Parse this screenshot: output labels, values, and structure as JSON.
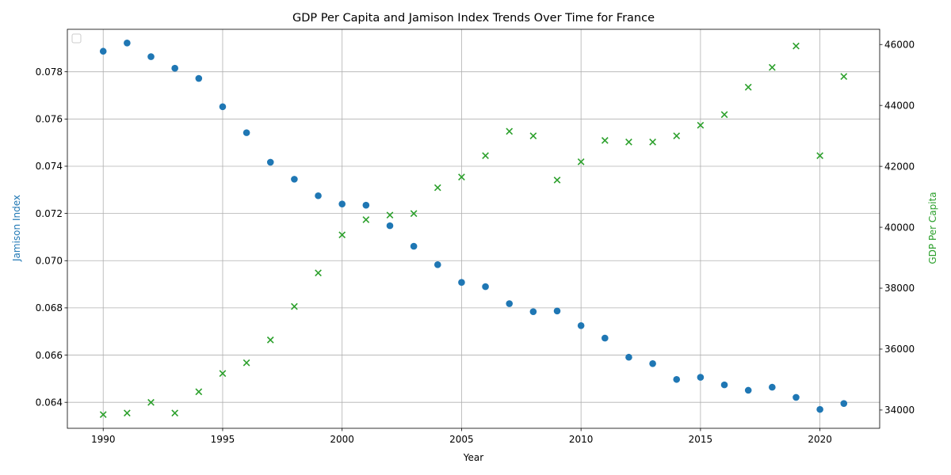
{
  "chart_data": {
    "type": "scatter",
    "title": "GDP Per Capita and Jamison Index Trends Over Time for France",
    "xlabel": "Year",
    "ylabel_left": "Jamison Index",
    "ylabel_right": "GDP Per Capita",
    "xlim": [
      1988.5,
      2022.5
    ],
    "ylim_left": [
      0.0629,
      0.0798
    ],
    "ylim_right": [
      33400,
      46500
    ],
    "x_ticks": [
      1990,
      1995,
      2000,
      2005,
      2010,
      2015,
      2020
    ],
    "y_ticks_left": [
      0.064,
      0.066,
      0.068,
      0.07,
      0.072,
      0.074,
      0.076,
      0.078
    ],
    "y_ticks_right": [
      34000,
      36000,
      38000,
      40000,
      42000,
      44000,
      46000
    ],
    "grid": true,
    "legend_position": "upper-left",
    "left_color": "#1f77b4",
    "right_color": "#2ca02c",
    "x": [
      1990,
      1991,
      1992,
      1993,
      1994,
      1995,
      1996,
      1997,
      1998,
      1999,
      2000,
      2001,
      2002,
      2003,
      2004,
      2005,
      2006,
      2007,
      2008,
      2009,
      2010,
      2011,
      2012,
      2013,
      2014,
      2015,
      2016,
      2017,
      2018,
      2019,
      2020,
      2021
    ],
    "series": [
      {
        "axis": "left",
        "marker": "circle",
        "color": "#1f77b4",
        "values": [
          0.07887,
          0.07922,
          0.07864,
          0.07815,
          0.07772,
          0.07652,
          0.07542,
          0.07417,
          0.07345,
          0.07275,
          0.0724,
          0.07235,
          0.07148,
          0.07061,
          0.06983,
          0.06908,
          0.0689,
          0.06818,
          0.06784,
          0.06787,
          0.06725,
          0.06672,
          0.06591,
          0.06564,
          0.06497,
          0.06506,
          0.06474,
          0.06451,
          0.06464,
          0.06421,
          0.0637,
          0.06395
        ]
      },
      {
        "axis": "right",
        "marker": "x",
        "color": "#2ca02c",
        "values": [
          33850,
          33900,
          34250,
          33900,
          34600,
          35200,
          35550,
          36300,
          37400,
          38500,
          39750,
          40250,
          40400,
          40450,
          41300,
          41650,
          42350,
          43150,
          43000,
          41550,
          42150,
          42850,
          42800,
          42800,
          43000,
          43350,
          43700,
          44600,
          45250,
          45950,
          42350,
          44950
        ]
      }
    ]
  }
}
